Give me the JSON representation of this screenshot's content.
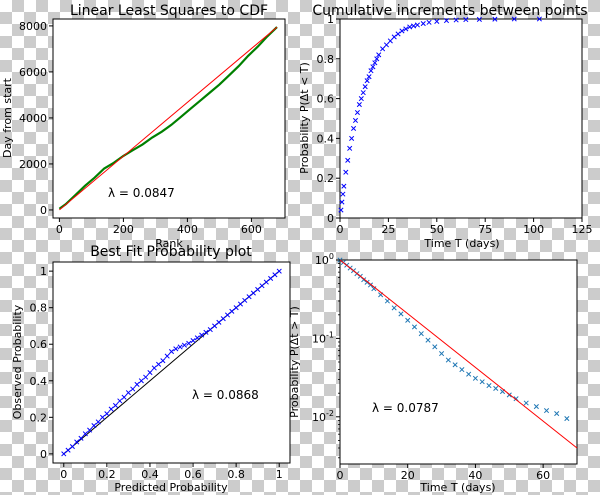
{
  "chart_data": [
    {
      "type": "line",
      "title": "Linear Least Squares to CDF",
      "xlabel": "Rank",
      "ylabel": "Day from start",
      "xlim": [
        -20,
        705
      ],
      "ylim": [
        -350,
        8300
      ],
      "xticks": [
        0,
        200,
        400,
        600
      ],
      "yticks": [
        0,
        2000,
        4000,
        6000,
        8000
      ],
      "annotation": "λ = 0.0847",
      "grid": false,
      "series": [
        {
          "kind": "line",
          "color": "#008000",
          "x": [
            0,
            20,
            50,
            80,
            110,
            140,
            170,
            200,
            230,
            260,
            290,
            320,
            350,
            380,
            410,
            440,
            470,
            500,
            530,
            560,
            590,
            620,
            650,
            680
          ],
          "y": [
            50,
            250,
            650,
            1050,
            1400,
            1800,
            2050,
            2350,
            2600,
            2850,
            3150,
            3400,
            3700,
            4050,
            4400,
            4750,
            5100,
            5450,
            5850,
            6250,
            6700,
            7100,
            7550,
            7950
          ]
        },
        {
          "kind": "line",
          "color": "#ff0000",
          "x": [
            0,
            680
          ],
          "y": [
            0,
            7950
          ]
        }
      ]
    },
    {
      "type": "scatter",
      "title": "Cumulative increments between points",
      "xlabel": "Time T (days)",
      "ylabel": "Probability P(Δt < T)",
      "xlim": [
        0,
        125
      ],
      "ylim": [
        0,
        1.0
      ],
      "xticks": [
        0,
        25,
        50,
        75,
        100,
        125
      ],
      "yticks": [
        0.0,
        0.2,
        0.4,
        0.6,
        0.8,
        1.0
      ],
      "grid": false,
      "series": [
        {
          "kind": "scatter",
          "color": "#0000ff",
          "x": [
            0.5,
            1,
            1.5,
            2,
            3,
            4,
            5,
            6,
            7,
            8,
            9,
            10,
            11,
            12,
            13,
            14,
            15,
            16,
            17,
            18,
            19,
            20,
            22,
            24,
            26,
            28,
            30,
            32,
            34,
            36,
            38,
            40,
            43,
            46,
            50,
            55,
            60,
            65,
            72,
            80,
            90,
            103
          ],
          "y": [
            0.04,
            0.08,
            0.12,
            0.16,
            0.23,
            0.29,
            0.35,
            0.4,
            0.45,
            0.49,
            0.53,
            0.57,
            0.6,
            0.63,
            0.66,
            0.69,
            0.71,
            0.74,
            0.76,
            0.78,
            0.8,
            0.82,
            0.85,
            0.87,
            0.89,
            0.91,
            0.925,
            0.94,
            0.95,
            0.96,
            0.965,
            0.97,
            0.977,
            0.983,
            0.988,
            0.992,
            0.995,
            0.997,
            0.998,
            0.999,
            1.0,
            1.0
          ]
        }
      ]
    },
    {
      "type": "scatter",
      "title": "Best Fit Probability plot",
      "xlabel": "Predicted Probability",
      "ylabel": "Observed Probability",
      "xlim": [
        -0.05,
        1.05
      ],
      "ylim": [
        -0.05,
        1.05
      ],
      "xticks": [
        0.0,
        0.2,
        0.4,
        0.6,
        0.8,
        1.0
      ],
      "yticks": [
        0.0,
        0.2,
        0.4,
        0.6,
        0.8,
        1.0
      ],
      "annotation": "λ = 0.0868",
      "grid": false,
      "series": [
        {
          "kind": "line",
          "color": "#000000",
          "x": [
            0,
            1
          ],
          "y": [
            0,
            1
          ]
        },
        {
          "kind": "scatter",
          "color": "#0000ff",
          "x": [
            0.0,
            0.02,
            0.04,
            0.06,
            0.08,
            0.1,
            0.12,
            0.14,
            0.16,
            0.18,
            0.2,
            0.22,
            0.24,
            0.26,
            0.28,
            0.3,
            0.32,
            0.34,
            0.36,
            0.38,
            0.4,
            0.42,
            0.44,
            0.46,
            0.48,
            0.5,
            0.52,
            0.54,
            0.56,
            0.58,
            0.6,
            0.62,
            0.64,
            0.66,
            0.68,
            0.7,
            0.72,
            0.74,
            0.76,
            0.78,
            0.8,
            0.82,
            0.84,
            0.86,
            0.88,
            0.9,
            0.92,
            0.94,
            0.96,
            0.98,
            1.0
          ],
          "y": [
            0.0,
            0.02,
            0.04,
            0.065,
            0.085,
            0.11,
            0.13,
            0.155,
            0.175,
            0.2,
            0.22,
            0.245,
            0.265,
            0.29,
            0.31,
            0.335,
            0.355,
            0.38,
            0.4,
            0.42,
            0.445,
            0.47,
            0.49,
            0.51,
            0.535,
            0.56,
            0.575,
            0.585,
            0.595,
            0.605,
            0.62,
            0.635,
            0.65,
            0.665,
            0.68,
            0.7,
            0.72,
            0.74,
            0.76,
            0.78,
            0.8,
            0.82,
            0.84,
            0.86,
            0.88,
            0.9,
            0.92,
            0.94,
            0.96,
            0.98,
            1.0
          ]
        }
      ]
    },
    {
      "type": "scatter",
      "title": "",
      "xlabel": "Time T (days)",
      "ylabel": "Probability P(Δt > T)",
      "xlim": [
        0,
        70
      ],
      "ylim": [
        0.0025,
        1.0
      ],
      "yscale": "log",
      "xticks": [
        0,
        20,
        40,
        60
      ],
      "yticks": [
        1,
        0.1,
        0.01
      ],
      "annotation": "λ = 0.0787",
      "grid": false,
      "series": [
        {
          "kind": "scatter",
          "color": "#1f77b4",
          "x": [
            0,
            1,
            2,
            3,
            4,
            5,
            6,
            7,
            8,
            9,
            10,
            12,
            14,
            16,
            18,
            20,
            22,
            24,
            26,
            28,
            30,
            32,
            34,
            36,
            38,
            40,
            42,
            44,
            46,
            48,
            50,
            52,
            55,
            58,
            61,
            64,
            67
          ],
          "y": [
            1.0,
            0.93,
            0.86,
            0.79,
            0.73,
            0.67,
            0.62,
            0.56,
            0.52,
            0.48,
            0.43,
            0.36,
            0.3,
            0.245,
            0.205,
            0.17,
            0.14,
            0.115,
            0.095,
            0.078,
            0.064,
            0.053,
            0.046,
            0.04,
            0.035,
            0.031,
            0.028,
            0.025,
            0.023,
            0.021,
            0.019,
            0.017,
            0.015,
            0.0135,
            0.012,
            0.011,
            0.0095
          ]
        },
        {
          "kind": "line",
          "color": "#ff0000",
          "x": [
            0,
            70
          ],
          "y": [
            1.0,
            0.004
          ]
        }
      ]
    }
  ]
}
